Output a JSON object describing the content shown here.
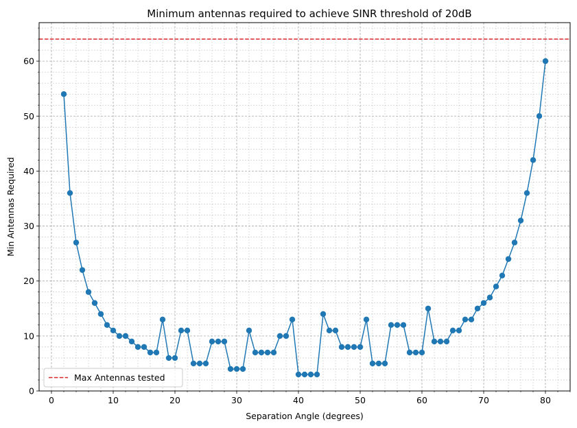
{
  "chart_data": {
    "type": "line",
    "title": "Minimum antennas required to achieve SINR threshold of 20dB",
    "xlabel": "Separation Angle (degrees)",
    "ylabel": "Min Antennas Required",
    "xlim": [
      -2,
      84
    ],
    "ylim": [
      0,
      67
    ],
    "xticks": [
      0,
      10,
      20,
      30,
      40,
      50,
      60,
      70,
      80
    ],
    "yticks": [
      0,
      10,
      20,
      30,
      40,
      50,
      60
    ],
    "grid": true,
    "legend_position": "lower-left",
    "reference_line": {
      "label": "Max Antennas tested",
      "y": 64,
      "color": "#d62728",
      "style": "dashed"
    },
    "series": [
      {
        "color": "#1f77b4",
        "x": [
          2,
          3,
          4,
          5,
          6,
          7,
          8,
          9,
          10,
          11,
          12,
          13,
          14,
          15,
          16,
          17,
          18,
          19,
          20,
          21,
          22,
          23,
          24,
          25,
          26,
          27,
          28,
          29,
          30,
          31,
          32,
          33,
          34,
          35,
          36,
          37,
          38,
          39,
          40,
          41,
          42,
          43,
          44,
          45,
          46,
          47,
          48,
          49,
          50,
          51,
          52,
          53,
          54,
          55,
          56,
          57,
          58,
          59,
          60,
          61,
          62,
          63,
          64,
          65,
          66,
          67,
          68,
          69,
          70,
          71,
          72,
          73,
          74,
          75,
          76,
          77,
          78,
          79,
          80
        ],
        "values": [
          54,
          36,
          27,
          22,
          18,
          16,
          14,
          12,
          11,
          10,
          10,
          9,
          8,
          8,
          7,
          7,
          13,
          6,
          6,
          11,
          11,
          5,
          5,
          5,
          9,
          9,
          9,
          4,
          4,
          4,
          11,
          7,
          7,
          7,
          7,
          10,
          10,
          13,
          3,
          3,
          3,
          3,
          14,
          11,
          11,
          8,
          8,
          8,
          8,
          13,
          5,
          5,
          5,
          12,
          12,
          12,
          7,
          7,
          7,
          15,
          9,
          9,
          9,
          11,
          11,
          13,
          13,
          15,
          16,
          17,
          19,
          21,
          24,
          27,
          31,
          36,
          42,
          50,
          60
        ]
      }
    ]
  }
}
